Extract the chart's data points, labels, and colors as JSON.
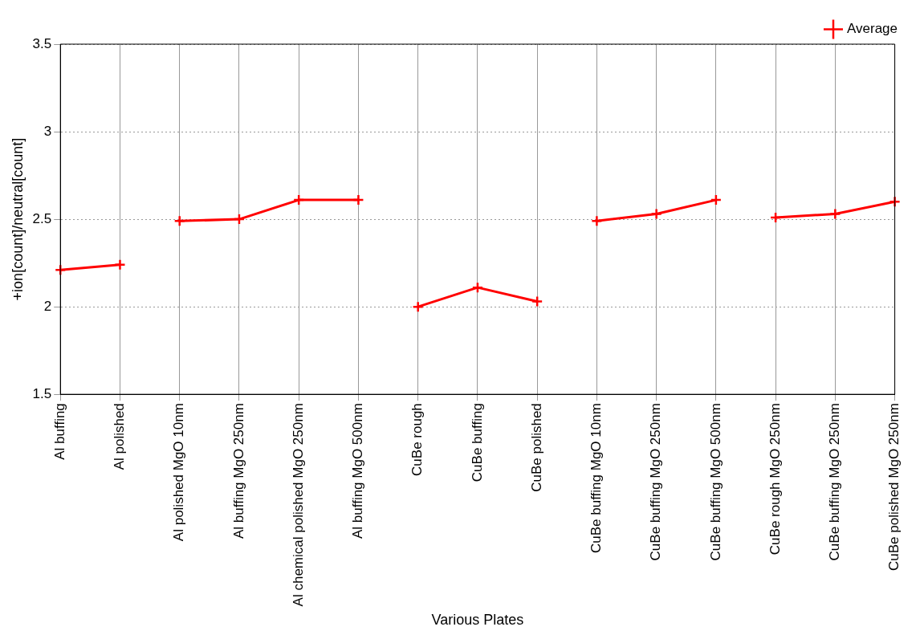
{
  "chart_data": {
    "type": "line",
    "xlabel": "Various Plates",
    "ylabel": "+ion[count]/neutral[count]",
    "categories": [
      "Al buffing",
      "Al polished",
      "Al polished MgO 10nm",
      "Al buffing MgO 250nm",
      "Al chemical polished MgO 250nm",
      "Al buffing MgO 500nm",
      "CuBe rough",
      "CuBe buffing",
      "CuBe polished",
      "CuBe buffing MgO 10nm",
      "CuBe buffing MgO 250nm",
      "CuBe buffing MgO 500nm",
      "CuBe rough MgO 250nm",
      "CuBe buffing MgO 250nm",
      "CuBe polished MgO 250nm"
    ],
    "series": [
      {
        "name": "Average",
        "color": "#ff0000",
        "values": [
          2.21,
          2.24,
          null,
          null,
          null,
          null,
          null,
          null,
          null,
          null,
          null,
          null,
          null,
          null,
          null
        ]
      },
      {
        "color": "#ff0000",
        "values": [
          null,
          null,
          2.49,
          2.5,
          2.61,
          2.61,
          null,
          null,
          null,
          null,
          null,
          null,
          null,
          null,
          null
        ]
      },
      {
        "color": "#ff0000",
        "values": [
          null,
          null,
          null,
          null,
          null,
          null,
          2.0,
          2.11,
          2.03,
          null,
          null,
          null,
          null,
          null,
          null
        ]
      },
      {
        "color": "#ff0000",
        "values": [
          null,
          null,
          null,
          null,
          null,
          null,
          null,
          null,
          null,
          2.49,
          2.53,
          2.61,
          null,
          null,
          null
        ]
      },
      {
        "color": "#ff0000",
        "values": [
          null,
          null,
          null,
          null,
          null,
          null,
          null,
          null,
          null,
          null,
          null,
          null,
          2.51,
          2.53,
          2.6
        ]
      }
    ],
    "ylim": [
      1.5,
      3.5
    ],
    "yticks": [
      1.5,
      2,
      2.5,
      3,
      3.5
    ],
    "grid": true,
    "legend": "top right",
    "marker": "cross",
    "line_style": "solid"
  }
}
